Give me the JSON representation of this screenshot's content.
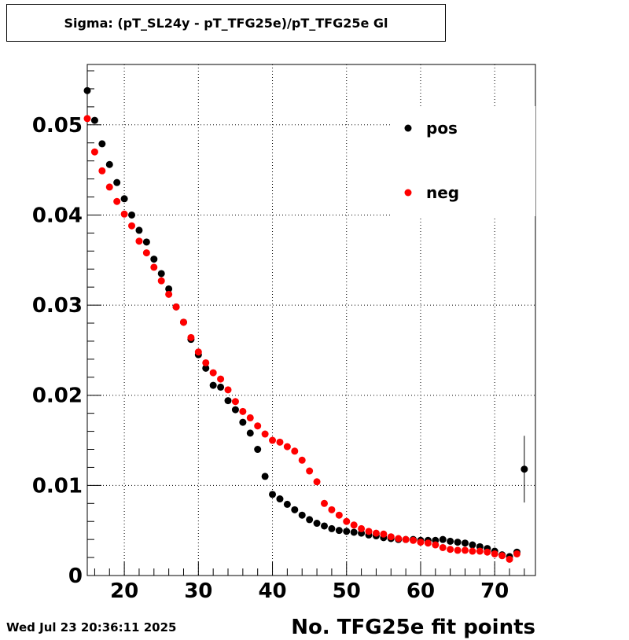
{
  "chart_data": {
    "type": "scatter",
    "title": "Sigma: (pT_SL24y - pT_TFG25e)/pT_TFG25e Gl",
    "xlabel": "No. TFG25e fit points",
    "ylabel": "",
    "xlim": [
      15,
      75.5
    ],
    "ylim": [
      0,
      0.0567
    ],
    "x_ticks": [
      20,
      30,
      40,
      50,
      60,
      70
    ],
    "x_tick_labels": [
      "20",
      "30",
      "40",
      "50",
      "60",
      "70"
    ],
    "y_ticks": [
      0,
      0.01,
      0.02,
      0.03,
      0.04,
      0.05
    ],
    "y_tick_labels": [
      "0",
      "0.01",
      "0.02",
      "0.03",
      "0.04",
      "0.05"
    ],
    "grid": true,
    "legend_position": "top-right",
    "series": [
      {
        "name": "pos",
        "color": "#000000",
        "x": [
          15,
          16,
          17,
          18,
          19,
          20,
          21,
          22,
          23,
          24,
          25,
          26,
          27,
          28,
          29,
          30,
          31,
          32,
          33,
          34,
          35,
          36,
          37,
          38,
          39,
          40,
          41,
          42,
          43,
          44,
          45,
          46,
          47,
          48,
          49,
          50,
          51,
          52,
          53,
          54,
          55,
          56,
          57,
          58,
          59,
          60,
          61,
          62,
          63,
          64,
          65,
          66,
          67,
          68,
          69,
          70,
          71,
          72,
          73,
          74
        ],
        "y": [
          0.0538,
          0.0505,
          0.0479,
          0.0456,
          0.0436,
          0.0418,
          0.04,
          0.0383,
          0.037,
          0.0351,
          0.0335,
          0.0318,
          0.0298,
          0.0281,
          0.0262,
          0.0245,
          0.023,
          0.0211,
          0.0209,
          0.0194,
          0.0184,
          0.017,
          0.0158,
          0.014,
          0.011,
          0.009,
          0.0085,
          0.0079,
          0.0073,
          0.0067,
          0.0062,
          0.0058,
          0.0055,
          0.0052,
          0.005,
          0.0049,
          0.0048,
          0.0047,
          0.0045,
          0.0044,
          0.0042,
          0.0041,
          0.004,
          0.004,
          0.004,
          0.0039,
          0.0039,
          0.0039,
          0.004,
          0.0038,
          0.0037,
          0.0036,
          0.0034,
          0.0032,
          0.003,
          0.0027,
          0.0023,
          0.0021,
          0.0026,
          0.0118
        ],
        "y_err_last": 0.0037
      },
      {
        "name": "neg",
        "color": "#ff0000",
        "x": [
          15,
          16,
          17,
          18,
          19,
          20,
          21,
          22,
          23,
          24,
          25,
          26,
          27,
          28,
          29,
          30,
          31,
          32,
          33,
          34,
          35,
          36,
          37,
          38,
          39,
          40,
          41,
          42,
          43,
          44,
          45,
          46,
          47,
          48,
          49,
          50,
          51,
          52,
          53,
          54,
          55,
          56,
          57,
          58,
          59,
          60,
          61,
          62,
          63,
          64,
          65,
          66,
          67,
          68,
          69,
          70,
          71,
          72,
          73
        ],
        "y": [
          0.0507,
          0.047,
          0.0449,
          0.0431,
          0.0415,
          0.0401,
          0.0388,
          0.0371,
          0.0358,
          0.0342,
          0.0327,
          0.0312,
          0.0298,
          0.0281,
          0.0264,
          0.0248,
          0.0236,
          0.0225,
          0.0218,
          0.0206,
          0.0193,
          0.0182,
          0.0175,
          0.0166,
          0.0157,
          0.015,
          0.0148,
          0.0143,
          0.0138,
          0.0128,
          0.0116,
          0.0104,
          0.008,
          0.0073,
          0.0067,
          0.006,
          0.0056,
          0.0052,
          0.0049,
          0.0047,
          0.0046,
          0.0043,
          0.0041,
          0.004,
          0.0039,
          0.0037,
          0.0036,
          0.0034,
          0.0031,
          0.0029,
          0.0028,
          0.0028,
          0.0027,
          0.0027,
          0.0026,
          0.0024,
          0.0022,
          0.0018,
          0.0024
        ]
      }
    ]
  },
  "footer": {
    "datestamp": "Wed Jul 23 20:36:11 2025"
  }
}
